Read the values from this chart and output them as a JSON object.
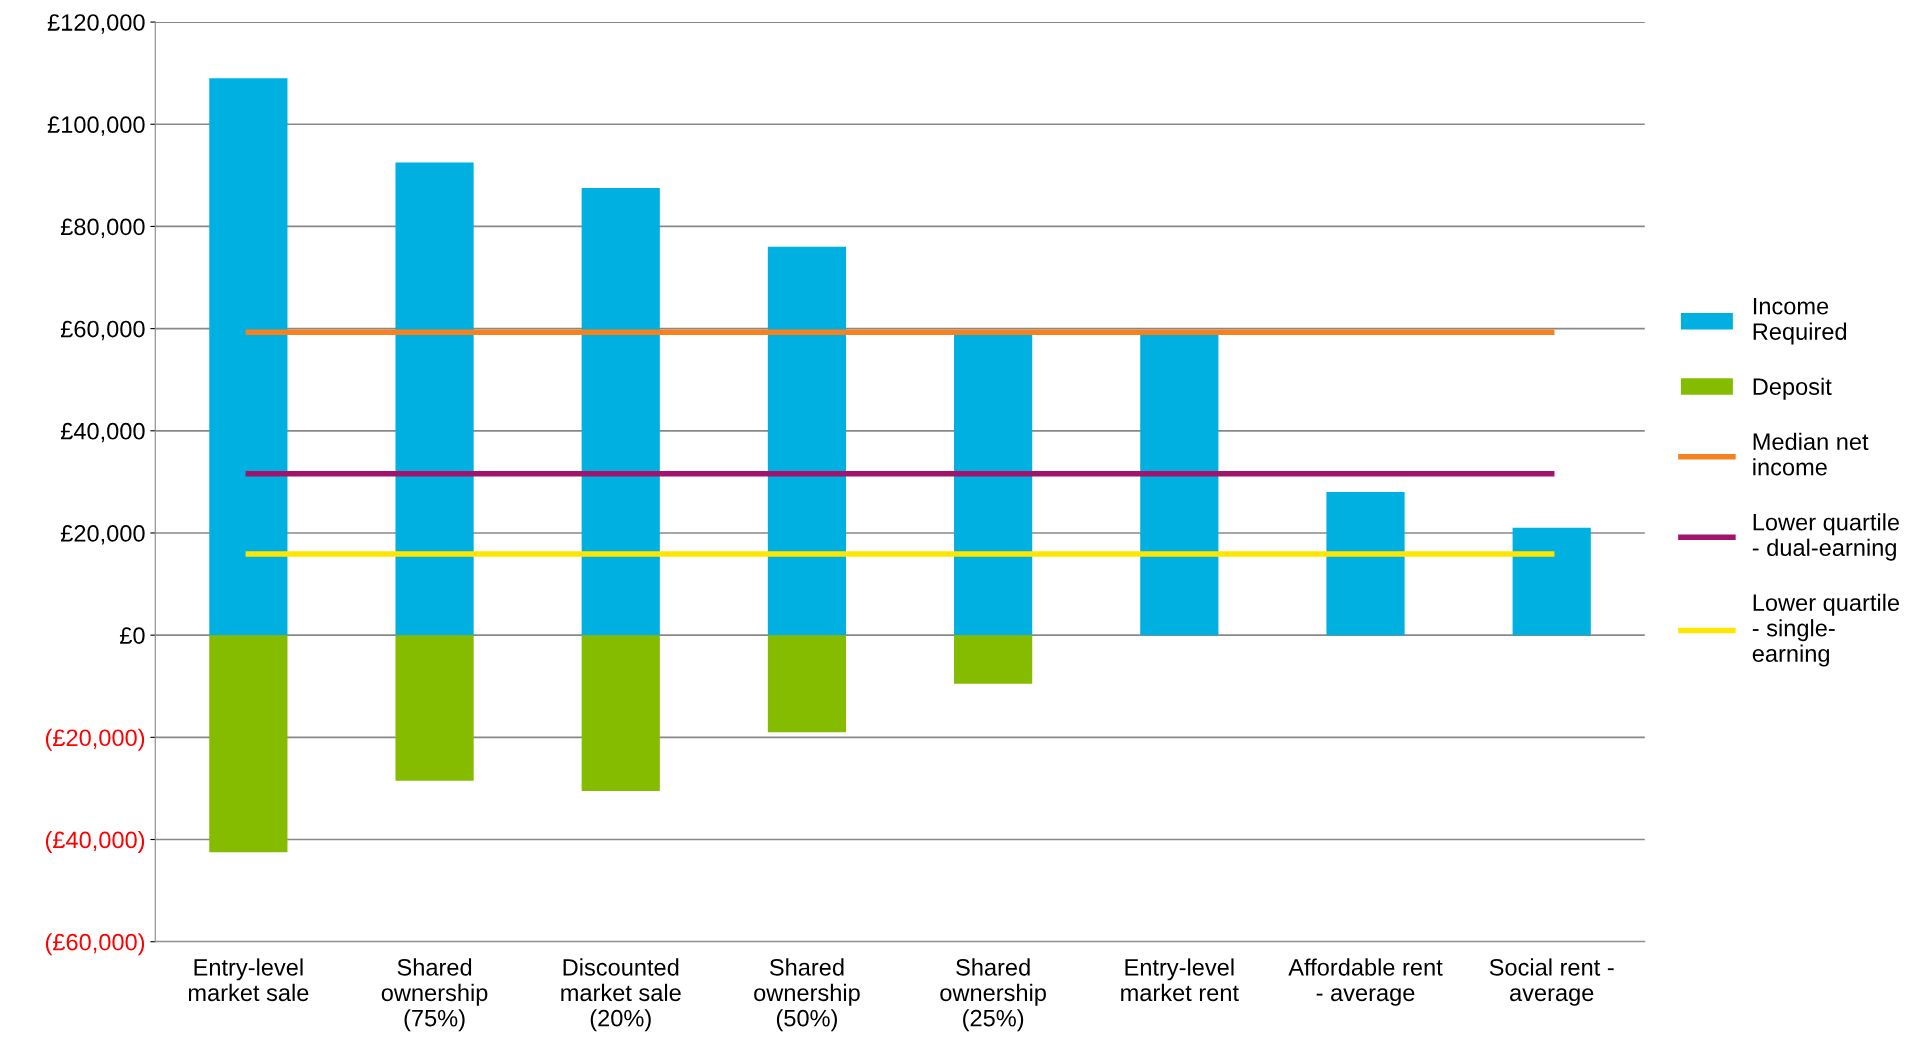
{
  "chart_data": {
    "type": "bar",
    "stacked": true,
    "categories": [
      "Entry-level\nmarket sale",
      "Shared\nownership\n(75%)",
      "Discounted\nmarket sale\n(20%)",
      "Shared\nownership\n(50%)",
      "Shared\nownership\n(25%)",
      "Entry-level\nmarket rent",
      "Affordable rent\n- average",
      "Social rent -\naverage"
    ],
    "series": [
      {
        "name": "Income\nRequired",
        "color": "#00b0e0",
        "values": [
          109000,
          92500,
          87500,
          76000,
          59000,
          59000,
          28000,
          21000
        ]
      },
      {
        "name": "Deposit",
        "color": "#86bc00",
        "values": [
          -42500,
          -28500,
          -30500,
          -19000,
          -9500,
          null,
          null,
          null
        ]
      },
      {
        "name": "Median net\nincome",
        "type": "line",
        "color": "#f58220",
        "values": [
          59300,
          59300,
          59300,
          59300,
          59300,
          59300,
          59300,
          59300
        ]
      },
      {
        "name": "Lower quartile\n- dual-earning",
        "type": "line",
        "color": "#a0146e",
        "values": [
          31600,
          31600,
          31600,
          31600,
          31600,
          31600,
          31600,
          31600
        ]
      },
      {
        "name": "Lower quartile\n- single-\nearning",
        "type": "line",
        "color": "#ffe600",
        "values": [
          15900,
          15900,
          15900,
          15900,
          15900,
          15900,
          15900,
          15900
        ]
      }
    ],
    "ylim": [
      -60000,
      120000
    ],
    "yticks": [
      {
        "value": -60000,
        "label": "(£60,000)"
      },
      {
        "value": -40000,
        "label": "(£40,000)"
      },
      {
        "value": -20000,
        "label": "(£20,000)"
      },
      {
        "value": 0,
        "label": "£0"
      },
      {
        "value": 20000,
        "label": "£20,000"
      },
      {
        "value": 40000,
        "label": "£40,000"
      },
      {
        "value": 60000,
        "label": "£60,000"
      },
      {
        "value": 80000,
        "label": "£80,000"
      },
      {
        "value": 100000,
        "label": "£100,000"
      },
      {
        "value": 120000,
        "label": "£120,000"
      }
    ],
    "grid": "y",
    "legend": "right",
    "marker": "none",
    "line_style": "solid"
  }
}
